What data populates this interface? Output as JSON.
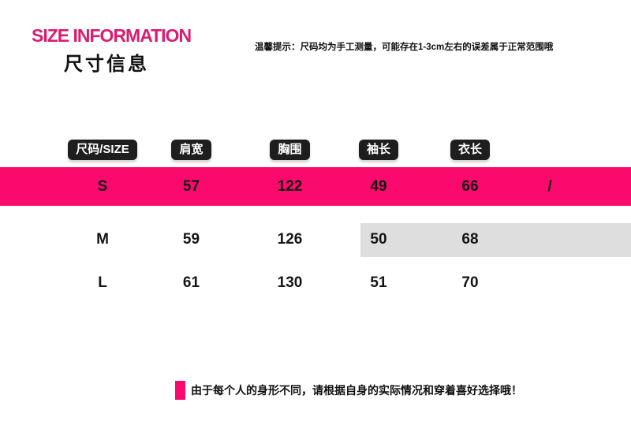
{
  "theme": {
    "background": "#ffffff",
    "accent": "#fa0a6c",
    "title": "#dc1b70",
    "badge": "#1e1e1e",
    "stripe": "#dedede",
    "text": "#111111"
  },
  "header": {
    "title_en": "SIZE INFORMATION",
    "title_zh": "尺寸信息",
    "tip": "温馨提示：尺码均为手工测量，可能存在1-3cm左右的误差属于正常范围哦"
  },
  "size_table": {
    "columns": [
      "尺码/SIZE",
      "肩宽",
      "胸围",
      "袖长",
      "衣长"
    ],
    "rows": [
      {
        "size": "S",
        "shoulder": "57",
        "bust": "122",
        "sleeve": "49",
        "length": "66",
        "note": "/",
        "highlighted": true
      },
      {
        "size": "M",
        "shoulder": "59",
        "bust": "126",
        "sleeve": "50",
        "length": "68",
        "note": "",
        "highlighted": false
      },
      {
        "size": "L",
        "shoulder": "61",
        "bust": "130",
        "sleeve": "51",
        "length": "70",
        "note": "",
        "highlighted": false
      }
    ]
  },
  "footer": {
    "note": "由于每个人的身形不同，请根据自身的实际情况和穿着喜好选择哦！"
  }
}
